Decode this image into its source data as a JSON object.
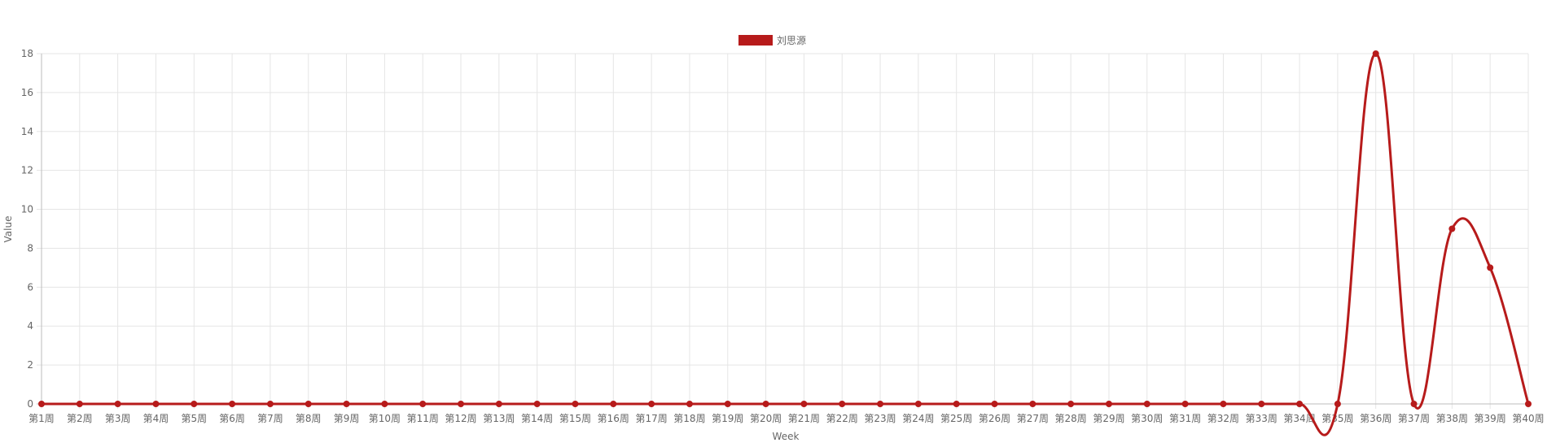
{
  "chart_data": {
    "type": "line",
    "categories": [
      "第1周",
      "第2周",
      "第3周",
      "第4周",
      "第5周",
      "第6周",
      "第7周",
      "第8周",
      "第9周",
      "第10周",
      "第11周",
      "第12周",
      "第13周",
      "第14周",
      "第15周",
      "第16周",
      "第17周",
      "第18周",
      "第19周",
      "第20周",
      "第21周",
      "第22周",
      "第23周",
      "第24周",
      "第25周",
      "第26周",
      "第27周",
      "第28周",
      "第29周",
      "第30周",
      "第31周",
      "第32周",
      "第33周",
      "第34周",
      "第35周",
      "第36周",
      "第37周",
      "第38周",
      "第39周",
      "第40周"
    ],
    "series": [
      {
        "name": "刘思源",
        "color": "#b71b1b",
        "values": [
          0,
          0,
          0,
          0,
          0,
          0,
          0,
          0,
          0,
          0,
          0,
          0,
          0,
          0,
          0,
          0,
          0,
          0,
          0,
          0,
          0,
          0,
          0,
          0,
          0,
          0,
          0,
          0,
          0,
          0,
          0,
          0,
          0,
          0,
          0,
          18,
          0,
          9,
          7,
          0
        ]
      }
    ],
    "xlabel": "Week",
    "ylabel": "Value",
    "ylim": [
      0,
      18
    ],
    "yticks": [
      0,
      2,
      4,
      6,
      8,
      10,
      12,
      14,
      16,
      18
    ],
    "grid": true,
    "legend_position": "top-center",
    "colors": {
      "grid": "#e5e5e5",
      "axis": "#bdbdbd",
      "text": "#666666"
    }
  }
}
